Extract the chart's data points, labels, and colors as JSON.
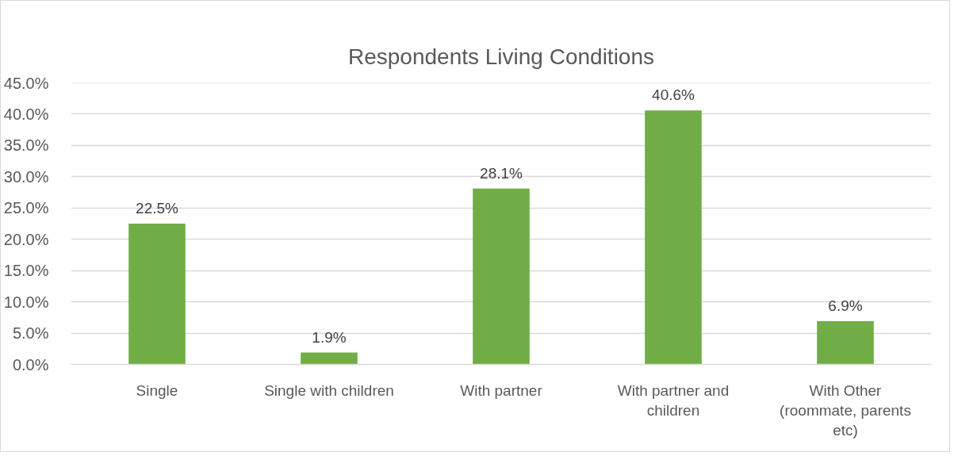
{
  "chart_data": {
    "type": "bar",
    "title": "Respondents Living Conditions",
    "categories": [
      "Single",
      "Single with children",
      "With partner",
      "With partner and children",
      "With Other (roommate, parents etc)"
    ],
    "values": [
      22.5,
      1.9,
      28.1,
      40.6,
      6.9
    ],
    "value_labels": [
      "22.5%",
      "1.9%",
      "28.1%",
      "40.6%",
      "6.9%"
    ],
    "color": "#70ad47",
    "ylim": [
      0,
      45
    ],
    "yticks": [
      {
        "value": 0,
        "label": "0.0%"
      },
      {
        "value": 5,
        "label": "5.0%"
      },
      {
        "value": 10,
        "label": "10.0%"
      },
      {
        "value": 15,
        "label": "15.0%"
      },
      {
        "value": 20,
        "label": "20.0%"
      },
      {
        "value": 25,
        "label": "25.0%"
      },
      {
        "value": 30,
        "label": "30.0%"
      },
      {
        "value": 35,
        "label": "35.0%"
      },
      {
        "value": 40,
        "label": "40.0%"
      },
      {
        "value": 45,
        "label": "45.0%"
      }
    ],
    "grid": "y"
  }
}
